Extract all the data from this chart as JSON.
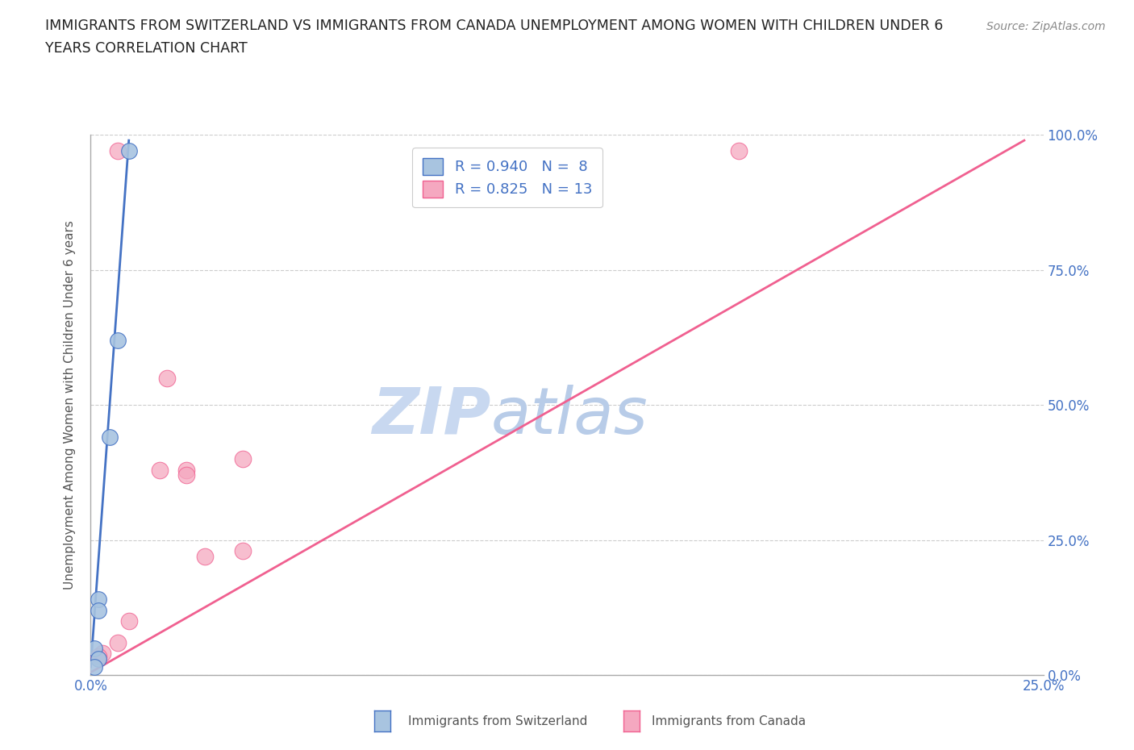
{
  "title_line1": "IMMIGRANTS FROM SWITZERLAND VS IMMIGRANTS FROM CANADA UNEMPLOYMENT AMONG WOMEN WITH CHILDREN UNDER 6",
  "title_line2": "YEARS CORRELATION CHART",
  "source": "Source: ZipAtlas.com",
  "ylabel": "Unemployment Among Women with Children Under 6 years",
  "xlim": [
    0,
    0.25
  ],
  "ylim": [
    0,
    1.0
  ],
  "xticks": [
    0.0,
    0.025,
    0.05,
    0.075,
    0.1,
    0.125,
    0.15,
    0.175,
    0.2,
    0.225,
    0.25
  ],
  "yticks": [
    0.0,
    0.25,
    0.5,
    0.75,
    1.0
  ],
  "ytick_labels": [
    "0.0%",
    "25.0%",
    "50.0%",
    "75.0%",
    "100.0%"
  ],
  "xtick_labels": [
    "0.0%",
    "",
    "",
    "",
    "",
    "",
    "",
    "",
    "",
    "",
    "25.0%"
  ],
  "switzerland_color": "#a8c4e0",
  "canada_color": "#f5a8c0",
  "switzerland_line_color": "#4472c4",
  "canada_line_color": "#f06090",
  "watermark_color": "#ccd8ee",
  "legend_R_switzerland": "0.940",
  "legend_N_switzerland": "8",
  "legend_R_canada": "0.825",
  "legend_N_canada": "13",
  "switzerland_scatter_x": [
    0.01,
    0.007,
    0.005,
    0.002,
    0.002,
    0.001,
    0.002,
    0.001
  ],
  "switzerland_scatter_y": [
    0.97,
    0.62,
    0.44,
    0.14,
    0.12,
    0.05,
    0.03,
    0.015
  ],
  "canada_scatter_x": [
    0.007,
    0.02,
    0.025,
    0.025,
    0.03,
    0.04,
    0.04,
    0.018,
    0.01,
    0.007,
    0.003,
    0.002,
    0.17
  ],
  "canada_scatter_y": [
    0.97,
    0.55,
    0.38,
    0.37,
    0.22,
    0.4,
    0.23,
    0.38,
    0.1,
    0.06,
    0.04,
    0.035,
    0.97
  ],
  "switzerland_trendline_x": [
    0.0,
    0.01
  ],
  "switzerland_trendline_y": [
    0.015,
    0.99
  ],
  "canada_trendline_x": [
    0.0,
    0.245
  ],
  "canada_trendline_y": [
    0.005,
    0.99
  ],
  "background_color": "#ffffff",
  "legend_text_color": "#4472c4",
  "title_color": "#222222",
  "grid_color": "#cccccc",
  "grid_dash": [
    4,
    4
  ]
}
